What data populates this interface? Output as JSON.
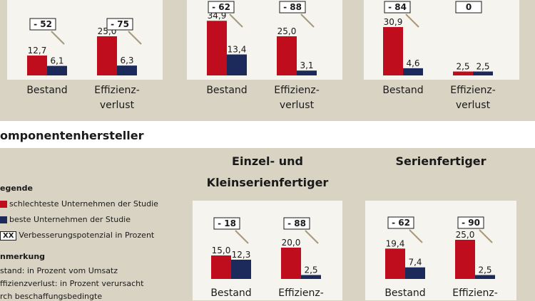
{
  "section_title": "omponentenhersteller",
  "legend": {
    "title": "egende",
    "items": [
      {
        "label": "schlechteste Unternehmen der Studie",
        "color": "#c00d1e"
      },
      {
        "label": "beste Unternehmen der Studie",
        "color": "#1b2a5a"
      },
      {
        "label": "Verbesserungspotenzial in Prozent",
        "marker": "XX"
      }
    ]
  },
  "note": {
    "title": "nmerkung",
    "lines": [
      "stand: in Prozent vom Umsatz",
      "ffizienzverlust: in Prozent verursacht",
      "rch beschaffungsbedingte"
    ]
  },
  "chart_data": [
    {
      "type": "bar",
      "title": "",
      "categories": [
        "Bestand",
        "Effizienz- verlust"
      ],
      "series": [
        {
          "values": [
            12.7,
            25.0
          ]
        },
        {
          "values": [
            6.1,
            6.3
          ]
        }
      ],
      "value_labels": [
        [
          "12,7",
          "25,0"
        ],
        [
          "6,1",
          "6,3"
        ]
      ],
      "potential": [
        "- 52",
        "- 75"
      ]
    },
    {
      "type": "bar",
      "title": "",
      "categories": [
        "Bestand",
        "Effizienz- verlust"
      ],
      "series": [
        {
          "values": [
            34.9,
            25.0
          ]
        },
        {
          "values": [
            13.4,
            3.1
          ]
        }
      ],
      "value_labels": [
        [
          "34,9",
          "25,0"
        ],
        [
          "13,4",
          "3,1"
        ]
      ],
      "potential": [
        "- 62",
        "- 88"
      ]
    },
    {
      "type": "bar",
      "title": "",
      "categories": [
        "Bestand",
        "Effizienz- verlust"
      ],
      "series": [
        {
          "values": [
            30.9,
            2.5
          ]
        },
        {
          "values": [
            4.6,
            2.5
          ]
        }
      ],
      "value_labels": [
        [
          "30,9",
          "2,5"
        ],
        [
          "4,6",
          "2,5"
        ]
      ],
      "potential": [
        "- 84",
        "0"
      ]
    },
    {
      "type": "bar",
      "title": "Einzel- und Kleinserienfertiger",
      "categories": [
        "Bestand",
        "Effizienz-"
      ],
      "series": [
        {
          "values": [
            15.0,
            20.0
          ]
        },
        {
          "values": [
            12.3,
            2.5
          ]
        }
      ],
      "value_labels": [
        [
          "15,0",
          "20,0"
        ],
        [
          "12,3",
          "2,5"
        ]
      ],
      "potential": [
        "- 18",
        "- 88"
      ]
    },
    {
      "type": "bar",
      "title": "Serienfertiger",
      "categories": [
        "Bestand",
        "Effizienz-"
      ],
      "series": [
        {
          "values": [
            19.4,
            25.0
          ]
        },
        {
          "values": [
            7.4,
            2.5
          ]
        }
      ],
      "value_labels": [
        [
          "19,4",
          "25,0"
        ],
        [
          "7,4",
          "2,5"
        ]
      ],
      "potential": [
        "- 62",
        "- 90"
      ]
    }
  ]
}
